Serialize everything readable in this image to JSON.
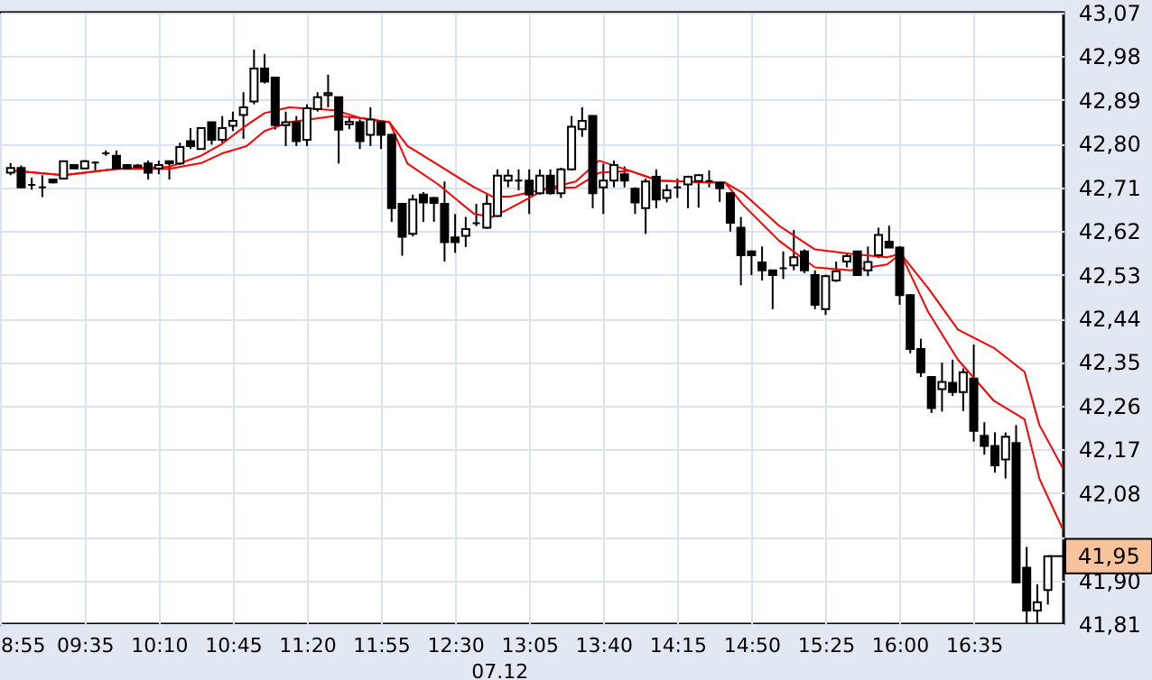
{
  "chart_data": {
    "type": "candlestick",
    "x": [
      9,
      9.0833,
      9.1667,
      9.25,
      9.3333,
      9.4167,
      9.5,
      9.5833,
      9.6667,
      9.75,
      9.8333,
      9.9167,
      10,
      10.0833,
      10.1667,
      10.25,
      10.3333,
      10.4167,
      10.5,
      10.5833,
      10.6667,
      10.75,
      10.8333,
      10.9167,
      11,
      11.0833,
      11.1667,
      11.25,
      11.3333,
      11.4167,
      11.5,
      11.5833,
      11.6667,
      11.75,
      11.8333,
      11.9167,
      12,
      12.0833,
      12.1667,
      12.25,
      12.3333,
      12.4167,
      12.5,
      12.5833,
      12.6667,
      12.75,
      12.8333,
      12.9167,
      13,
      13.0833,
      13.1667,
      13.25,
      13.3333,
      13.4167,
      13.5,
      13.5833,
      13.6667,
      13.75,
      13.8333,
      13.9167,
      14,
      14.0833,
      14.1667,
      14.25,
      14.3333,
      14.4167,
      14.5,
      14.5833,
      14.6667,
      14.75,
      14.8333,
      14.9167,
      15,
      15.0833,
      15.1667,
      15.25,
      15.3333,
      15.4167,
      15.5,
      15.5833,
      15.6667,
      15.75,
      15.8333,
      15.9167,
      16,
      16.0833,
      16.1667,
      16.25,
      16.3333,
      16.4167,
      16.5,
      16.5833,
      16.6667,
      16.75,
      16.8333,
      16.9167,
      17,
      17.0833,
      17.1667
    ],
    "ohlc": [
      [
        42.74,
        42.76,
        42.735,
        42.75
      ],
      [
        42.75,
        42.755,
        42.708,
        42.71
      ],
      [
        42.715,
        42.73,
        42.705,
        42.715
      ],
      [
        42.71,
        42.735,
        42.69,
        42.71
      ],
      [
        42.726,
        42.728,
        42.718,
        42.72
      ],
      [
        42.728,
        42.765,
        42.727,
        42.764
      ],
      [
        42.756,
        42.758,
        42.748,
        42.749
      ],
      [
        42.749,
        42.766,
        42.748,
        42.764
      ],
      [
        42.761,
        42.763,
        42.745,
        42.761
      ],
      [
        42.78,
        42.786,
        42.775,
        42.78
      ],
      [
        42.775,
        42.786,
        42.747,
        42.749
      ],
      [
        42.756,
        42.758,
        42.747,
        42.749
      ],
      [
        42.755,
        42.758,
        42.748,
        42.752
      ],
      [
        42.759,
        42.765,
        42.726,
        42.74
      ],
      [
        42.749,
        42.765,
        42.737,
        42.756
      ],
      [
        42.764,
        42.765,
        42.726,
        42.759
      ],
      [
        42.759,
        42.802,
        42.756,
        42.793
      ],
      [
        42.805,
        42.832,
        42.789,
        42.795
      ],
      [
        42.789,
        42.834,
        42.788,
        42.832
      ],
      [
        42.844,
        42.845,
        42.798,
        42.808
      ],
      [
        42.808,
        42.857,
        42.802,
        42.832
      ],
      [
        42.837,
        42.866,
        42.826,
        42.847
      ],
      [
        42.859,
        42.906,
        42.81,
        42.875
      ],
      [
        42.887,
        42.994,
        42.881,
        42.955
      ],
      [
        42.955,
        42.985,
        42.924,
        42.928
      ],
      [
        42.936,
        42.938,
        42.829,
        42.838
      ],
      [
        42.838,
        42.866,
        42.795,
        42.844
      ],
      [
        42.844,
        42.857,
        42.795,
        42.805
      ],
      [
        42.808,
        42.881,
        42.795,
        42.873
      ],
      [
        42.871,
        42.906,
        42.866,
        42.896
      ],
      [
        42.9,
        42.942,
        42.875,
        42.904
      ],
      [
        42.896,
        42.896,
        42.759,
        42.829
      ],
      [
        42.84,
        42.856,
        42.83,
        42.845
      ],
      [
        42.844,
        42.85,
        42.789,
        42.805
      ],
      [
        42.818,
        42.875,
        42.795,
        42.85
      ],
      [
        42.844,
        42.846,
        42.789,
        42.818
      ],
      [
        42.818,
        42.82,
        42.639,
        42.667
      ],
      [
        42.676,
        42.678,
        42.569,
        42.608
      ],
      [
        42.614,
        42.695,
        42.609,
        42.685
      ],
      [
        42.695,
        42.7,
        42.639,
        42.679
      ],
      [
        42.688,
        42.69,
        42.639,
        42.678
      ],
      [
        42.676,
        42.722,
        42.557,
        42.597
      ],
      [
        42.607,
        42.655,
        42.575,
        42.597
      ],
      [
        42.61,
        42.649,
        42.587,
        42.624
      ],
      [
        42.636,
        42.676,
        42.63,
        42.636
      ],
      [
        42.627,
        42.695,
        42.624,
        42.676
      ],
      [
        42.651,
        42.747,
        42.649,
        42.734
      ],
      [
        42.724,
        42.747,
        42.71,
        42.734
      ],
      [
        42.724,
        42.747,
        42.704,
        42.724
      ],
      [
        42.724,
        42.747,
        42.655,
        42.695
      ],
      [
        42.698,
        42.747,
        42.695,
        42.734
      ],
      [
        42.734,
        42.747,
        42.695,
        42.698
      ],
      [
        42.698,
        42.75,
        42.688,
        42.747
      ],
      [
        42.747,
        42.857,
        42.745,
        42.835
      ],
      [
        42.83,
        42.875,
        42.814,
        42.847
      ],
      [
        42.857,
        42.858,
        42.667,
        42.698
      ],
      [
        42.71,
        42.759,
        42.655,
        42.724
      ],
      [
        42.724,
        42.765,
        42.71,
        42.756
      ],
      [
        42.737,
        42.753,
        42.71,
        42.724
      ],
      [
        42.707,
        42.71,
        42.655,
        42.679
      ],
      [
        42.667,
        42.728,
        42.614,
        42.722
      ],
      [
        42.732,
        42.747,
        42.667,
        42.685
      ],
      [
        42.688,
        42.716,
        42.679,
        42.704
      ],
      [
        42.71,
        42.728,
        42.688,
        42.71
      ],
      [
        42.716,
        42.734,
        42.667,
        42.732
      ],
      [
        42.723,
        42.737,
        42.668,
        42.735
      ],
      [
        42.723,
        42.745,
        42.71,
        42.723
      ],
      [
        42.719,
        42.722,
        42.68,
        42.708
      ],
      [
        42.698,
        42.7,
        42.619,
        42.637
      ],
      [
        42.627,
        42.649,
        42.508,
        42.57
      ],
      [
        42.578,
        42.58,
        42.529,
        42.57
      ],
      [
        42.555,
        42.588,
        42.518,
        42.539
      ],
      [
        42.539,
        42.54,
        42.459,
        42.529
      ],
      [
        42.543,
        42.578,
        42.521,
        42.543
      ],
      [
        42.549,
        42.622,
        42.539,
        42.566
      ],
      [
        42.578,
        42.582,
        42.533,
        42.539
      ],
      [
        42.529,
        42.539,
        42.459,
        42.468
      ],
      [
        42.459,
        42.53,
        42.447,
        42.527
      ],
      [
        42.518,
        42.557,
        42.515,
        42.537
      ],
      [
        42.557,
        42.573,
        42.545,
        42.568
      ],
      [
        42.578,
        42.578,
        42.529,
        42.529
      ],
      [
        42.539,
        42.588,
        42.527,
        42.556
      ],
      [
        42.57,
        42.627,
        42.564,
        42.612
      ],
      [
        42.598,
        42.631,
        42.586,
        42.586
      ],
      [
        42.586,
        42.589,
        42.468,
        42.488
      ],
      [
        42.488,
        42.49,
        42.368,
        42.377
      ],
      [
        42.377,
        42.398,
        42.319,
        42.329
      ],
      [
        42.319,
        42.32,
        42.245,
        42.255
      ],
      [
        42.294,
        42.349,
        42.248,
        42.309
      ],
      [
        42.307,
        42.355,
        42.28,
        42.288
      ],
      [
        42.288,
        42.337,
        42.249,
        42.329
      ],
      [
        42.316,
        42.386,
        42.186,
        42.208
      ],
      [
        42.198,
        42.226,
        42.159,
        42.177
      ],
      [
        42.177,
        42.205,
        42.122,
        42.137
      ],
      [
        42.149,
        42.205,
        42.11,
        42.196
      ],
      [
        42.183,
        42.22,
        41.896,
        41.896
      ],
      [
        41.926,
        41.969,
        41.81,
        41.838
      ],
      [
        41.838,
        41.892,
        41.81,
        41.855
      ],
      [
        41.88,
        41.95,
        41.85,
        41.95
      ]
    ],
    "series": [
      {
        "type": "line",
        "color": "#ff0000",
        "x": [
          9,
          9.4167,
          9.8333,
          10.25,
          10.5,
          10.6667,
          10.858,
          11,
          11.192,
          11.558,
          11.75,
          11.983,
          12.125,
          12.367,
          12.65,
          12.792,
          12.933,
          13.217,
          13.45,
          13.633,
          13.875,
          14.1,
          14.483,
          14.625,
          14.767,
          15.05,
          15.333,
          15.617,
          15.9,
          16.008,
          16.225,
          16.458,
          16.742,
          16.983,
          17.1,
          17.283
        ],
        "values": [
          42.745,
          42.735,
          42.748,
          42.752,
          42.775,
          42.8,
          42.838,
          42.863,
          42.875,
          42.869,
          42.853,
          42.844,
          42.759,
          42.716,
          42.655,
          42.649,
          42.667,
          42.707,
          42.722,
          42.765,
          42.744,
          42.724,
          42.72,
          42.72,
          42.674,
          42.6,
          42.545,
          42.539,
          42.551,
          42.573,
          42.453,
          42.355,
          42.27,
          42.232,
          42.11,
          42.006
        ]
      },
      {
        "type": "line",
        "color": "#ff0000",
        "x": [
          9,
          9.4167,
          9.8333,
          10.25,
          10.5,
          10.6667,
          10.858,
          11,
          11.192,
          11.558,
          11.75,
          11.983,
          12.125,
          12.367,
          12.65,
          12.792,
          12.933,
          13.217,
          13.45,
          13.633,
          13.875,
          14.1,
          14.483,
          14.625,
          14.767,
          15.05,
          15.333,
          15.617,
          15.9,
          16.008,
          16.225,
          16.458,
          16.742,
          16.983,
          17.1,
          17.283
        ],
        "values": [
          42.745,
          42.735,
          42.748,
          42.748,
          42.76,
          42.78,
          42.795,
          42.826,
          42.844,
          42.857,
          42.853,
          42.844,
          42.795,
          42.756,
          42.71,
          42.691,
          42.691,
          42.707,
          42.71,
          42.74,
          42.744,
          42.724,
          42.72,
          42.72,
          42.698,
          42.631,
          42.582,
          42.573,
          42.566,
          42.573,
          42.502,
          42.417,
          42.379,
          42.33,
          42.22,
          42.132
        ]
      }
    ],
    "xlim": [
      8.9167,
      17.29
    ],
    "xticks": [
      {
        "value": 8.9167,
        "label": "8:55"
      },
      {
        "value": 9.5833,
        "label": "09:35"
      },
      {
        "value": 10.1667,
        "label": "10:10"
      },
      {
        "value": 10.75,
        "label": "10:45"
      },
      {
        "value": 11.3333,
        "label": "11:20"
      },
      {
        "value": 11.9167,
        "label": "11:55"
      },
      {
        "value": 12.5,
        "label": "12:30"
      },
      {
        "value": 13.0833,
        "label": "13:05"
      },
      {
        "value": 13.6667,
        "label": "13:40"
      },
      {
        "value": 14.25,
        "label": "14:15"
      },
      {
        "value": 14.8333,
        "label": "14:50"
      },
      {
        "value": 15.4167,
        "label": "15:25"
      },
      {
        "value": 16.0,
        "label": "16:00"
      },
      {
        "value": 16.5833,
        "label": "16:35"
      }
    ],
    "ylim": [
      41.81,
      43.07
    ],
    "yticks": [
      {
        "value": 41.81,
        "label": "41,81"
      },
      {
        "value": 41.9,
        "label": "41,90"
      },
      {
        "value": 41.99,
        "label": null
      },
      {
        "value": 42.08,
        "label": "42,08"
      },
      {
        "value": 42.17,
        "label": "42,17"
      },
      {
        "value": 42.26,
        "label": "42,26"
      },
      {
        "value": 42.35,
        "label": "42,35"
      },
      {
        "value": 42.44,
        "label": "42,44"
      },
      {
        "value": 42.53,
        "label": "42,53"
      },
      {
        "value": 42.62,
        "label": "42,62"
      },
      {
        "value": 42.71,
        "label": "42,71"
      },
      {
        "value": 42.8,
        "label": "42,80"
      },
      {
        "value": 42.89,
        "label": "42,89"
      },
      {
        "value": 42.98,
        "label": "42,98"
      },
      {
        "value": 43.07,
        "label": "43,07"
      }
    ],
    "annotations": [
      {
        "text": "41,95",
        "x": 17.1667,
        "y": 41.95
      },
      "07.12"
    ],
    "grid": true,
    "marker": "none",
    "line_style": "solid"
  }
}
